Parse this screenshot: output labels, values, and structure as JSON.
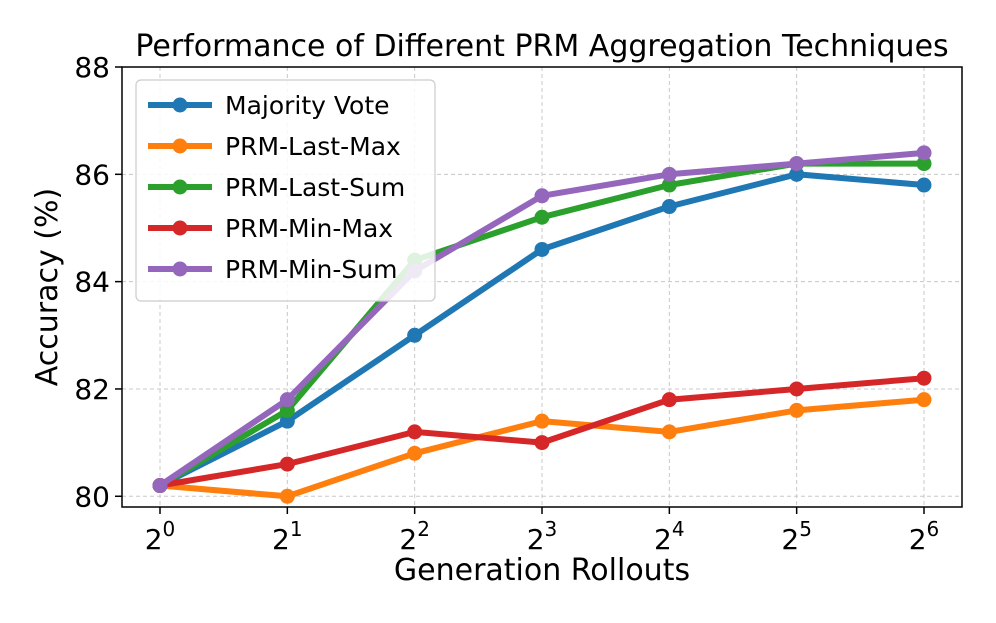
{
  "chart_data": {
    "type": "line",
    "title": "Performance of Different PRM Aggregation Techniques",
    "xlabel": "Generation Rollouts",
    "ylabel": "Accuracy (%)",
    "x_tick_base": "2",
    "x_tick_exponents": [
      "0",
      "1",
      "2",
      "3",
      "4",
      "5",
      "6"
    ],
    "x": [
      1,
      2,
      4,
      8,
      16,
      32,
      64
    ],
    "x_scale": "log2",
    "ylim": [
      79.8,
      88
    ],
    "y_ticks": [
      "80",
      "82",
      "84",
      "86",
      "88"
    ],
    "grid": true,
    "legend_position": "top-left",
    "series": [
      {
        "name": "Majority Vote",
        "color": "#1f77b4",
        "values": [
          80.2,
          81.4,
          83.0,
          84.6,
          85.4,
          86.0,
          85.8
        ]
      },
      {
        "name": "PRM-Last-Max",
        "color": "#ff7f0e",
        "values": [
          80.2,
          80.0,
          80.8,
          81.4,
          81.2,
          81.6,
          81.8
        ]
      },
      {
        "name": "PRM-Last-Sum",
        "color": "#2ca02c",
        "values": [
          80.2,
          81.6,
          84.4,
          85.2,
          85.8,
          86.2,
          86.2
        ]
      },
      {
        "name": "PRM-Min-Max",
        "color": "#d62728",
        "values": [
          80.2,
          80.6,
          81.2,
          81.0,
          81.8,
          82.0,
          82.2
        ]
      },
      {
        "name": "PRM-Min-Sum",
        "color": "#9467bd",
        "values": [
          80.2,
          81.8,
          84.2,
          85.6,
          86.0,
          86.2,
          86.4
        ]
      }
    ]
  }
}
